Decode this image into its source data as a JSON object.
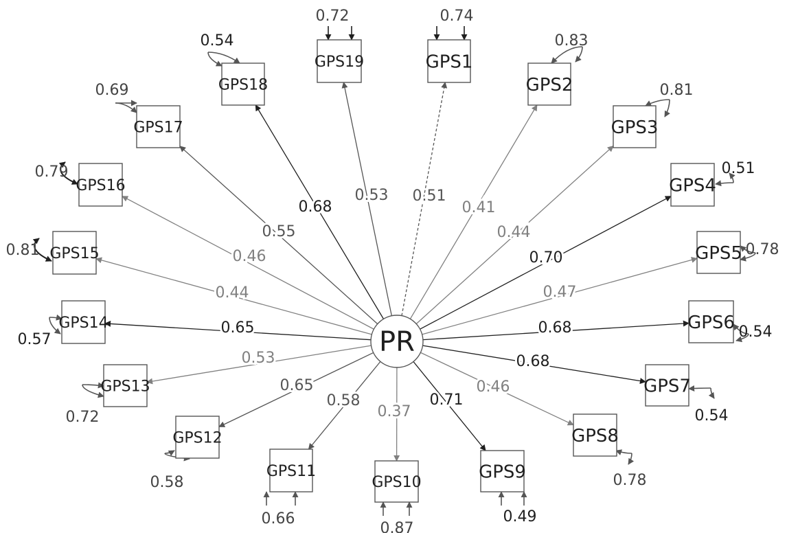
{
  "latent": {
    "label": "PR"
  },
  "colors": {
    "dark": "#1f1f1f",
    "mid": "#555555",
    "light": "#808080"
  },
  "indicators": [
    {
      "label": "GPS1",
      "loading": "0.51",
      "residual": "0.74",
      "shade": "mid",
      "fixed": true
    },
    {
      "label": "GPS2",
      "loading": "0.41",
      "residual": "0.83",
      "shade": "light"
    },
    {
      "label": "GPS3",
      "loading": "0.44",
      "residual": "0.81",
      "shade": "light"
    },
    {
      "label": "GPS4",
      "loading": "0.70",
      "residual": "0.51",
      "shade": "dark"
    },
    {
      "label": "GPS5",
      "loading": "0.47",
      "residual": "0.78",
      "shade": "light"
    },
    {
      "label": "GPS6",
      "loading": "0.68",
      "residual": "0.54",
      "shade": "dark"
    },
    {
      "label": "GPS7",
      "loading": "0.68",
      "residual": "0.54",
      "shade": "dark"
    },
    {
      "label": "GPS8",
      "loading": "0.46",
      "residual": "0.78",
      "shade": "light"
    },
    {
      "label": "GPS9",
      "loading": "0.71",
      "residual": "0.49",
      "shade": "dark"
    },
    {
      "label": "GPS10",
      "loading": "0.37",
      "residual": "0.87",
      "shade": "light"
    },
    {
      "label": "GPS11",
      "loading": "0.58",
      "residual": "0.66",
      "shade": "mid"
    },
    {
      "label": "GPS12",
      "loading": "0.65",
      "residual": "0.58",
      "shade": "mid"
    },
    {
      "label": "GPS13",
      "loading": "0.53",
      "residual": "0.72",
      "shade": "light"
    },
    {
      "label": "GPS14",
      "loading": "0.65",
      "residual": "0.57",
      "shade": "dark"
    },
    {
      "label": "GPS15",
      "loading": "0.44",
      "residual": "0.81",
      "shade": "light"
    },
    {
      "label": "GPS16",
      "loading": "0.46",
      "residual": "0.79",
      "shade": "light"
    },
    {
      "label": "GPS17",
      "loading": "0.55",
      "residual": "0.69",
      "shade": "mid"
    },
    {
      "label": "GPS18",
      "loading": "0.68",
      "residual": "0.54",
      "shade": "dark"
    },
    {
      "label": "GPS19",
      "loading": "0.53",
      "residual": "0.72",
      "shade": "mid"
    }
  ]
}
